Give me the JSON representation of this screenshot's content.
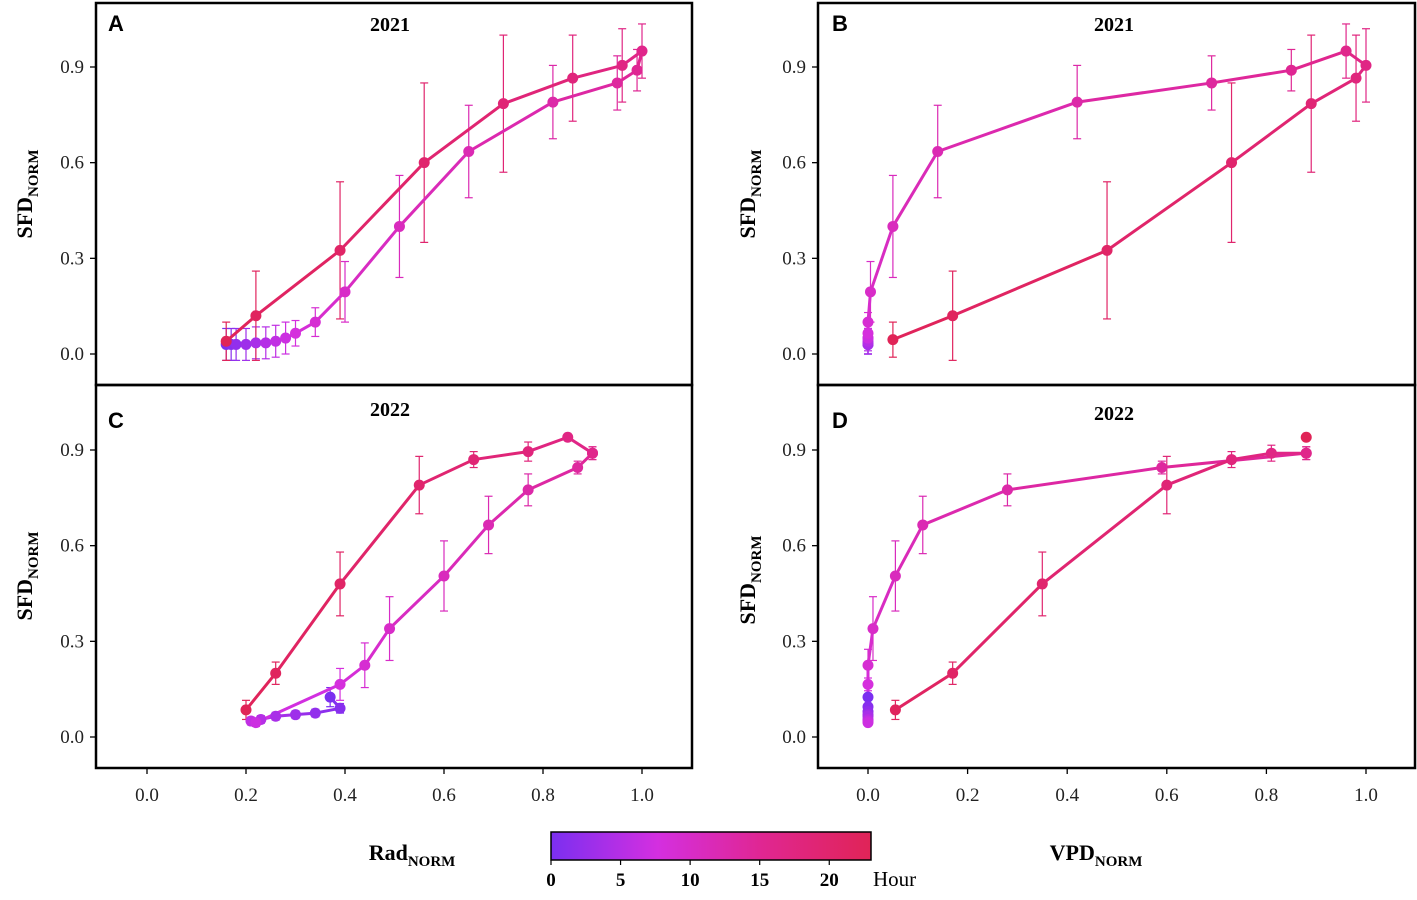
{
  "figure": {
    "xlabel_left": {
      "main": "Rad",
      "sub": "NORM"
    },
    "xlabel_right": {
      "main": "VPD",
      "sub": "NORM"
    },
    "colorbar": {
      "label": "Hour",
      "ticks": [
        "0",
        "5",
        "10",
        "15",
        "20"
      ],
      "tick_values": [
        0,
        5,
        10,
        15,
        20
      ],
      "range": [
        0,
        23
      ],
      "colors": [
        "#7b2ff0",
        "#d42fe0",
        "#e02690",
        "#e02457"
      ]
    }
  },
  "chart_data": [
    {
      "type": "line",
      "panel": "A",
      "title": "2021",
      "xlabel": "Rad_NORM",
      "ylabel": {
        "main": "SFD",
        "sub": "NORM"
      },
      "xlim": [
        -0.1,
        1.1
      ],
      "ylim": [
        -0.05,
        1.05
      ],
      "xticks": [
        "0.0",
        "0.2",
        "0.4",
        "0.6",
        "0.8",
        "1.0"
      ],
      "yticks": [
        "0.0",
        "0.3",
        "0.6",
        "0.9"
      ],
      "show_x_ticklabels": false,
      "points": [
        {
          "x": 0.16,
          "y": 0.03,
          "err": 0.05,
          "h": 0
        },
        {
          "x": 0.17,
          "y": 0.03,
          "err": 0.05,
          "h": 1
        },
        {
          "x": 0.18,
          "y": 0.03,
          "err": 0.05,
          "h": 2
        },
        {
          "x": 0.2,
          "y": 0.03,
          "err": 0.05,
          "h": 3
        },
        {
          "x": 0.22,
          "y": 0.035,
          "err": 0.05,
          "h": 4
        },
        {
          "x": 0.24,
          "y": 0.035,
          "err": 0.05,
          "h": 5
        },
        {
          "x": 0.26,
          "y": 0.04,
          "err": 0.05,
          "h": 6
        },
        {
          "x": 0.28,
          "y": 0.05,
          "err": 0.05,
          "h": 7
        },
        {
          "x": 0.3,
          "y": 0.065,
          "err": 0.04,
          "h": 8
        },
        {
          "x": 0.34,
          "y": 0.1,
          "err": 0.045,
          "h": 9
        },
        {
          "x": 0.4,
          "y": 0.195,
          "err": 0.095,
          "h": 10
        },
        {
          "x": 0.51,
          "y": 0.4,
          "err": 0.16,
          "h": 11
        },
        {
          "x": 0.65,
          "y": 0.635,
          "err": 0.145,
          "h": 12
        },
        {
          "x": 0.82,
          "y": 0.79,
          "err": 0.115,
          "h": 13
        },
        {
          "x": 0.95,
          "y": 0.85,
          "err": 0.085,
          "h": 14
        },
        {
          "x": 0.99,
          "y": 0.89,
          "err": 0.065,
          "h": 15
        },
        {
          "x": 1.0,
          "y": 0.95,
          "err": 0.085,
          "h": 16
        },
        {
          "x": 0.96,
          "y": 0.905,
          "err": 0.115,
          "h": 17
        },
        {
          "x": 0.86,
          "y": 0.865,
          "err": 0.135,
          "h": 18
        },
        {
          "x": 0.72,
          "y": 0.785,
          "err": 0.215,
          "h": 19
        },
        {
          "x": 0.56,
          "y": 0.6,
          "err": 0.25,
          "h": 20
        },
        {
          "x": 0.39,
          "y": 0.325,
          "err": 0.215,
          "h": 21
        },
        {
          "x": 0.22,
          "y": 0.12,
          "err": 0.14,
          "h": 22
        },
        {
          "x": 0.16,
          "y": 0.04,
          "err": 0.06,
          "h": 23
        }
      ]
    },
    {
      "type": "line",
      "panel": "B",
      "title": "2021",
      "xlabel": "VPD_NORM",
      "ylabel": {
        "main": "SFD",
        "sub": "NORM"
      },
      "xlim": [
        -0.1,
        1.1
      ],
      "ylim": [
        -0.05,
        1.05
      ],
      "xticks": [
        "0.0",
        "0.2",
        "0.4",
        "0.6",
        "0.8",
        "1.0"
      ],
      "yticks": [
        "0.0",
        "0.3",
        "0.6",
        "0.9"
      ],
      "show_x_ticklabels": false,
      "points": [
        {
          "x": 0.0,
          "y": 0.03,
          "err": 0.03,
          "h": 0
        },
        {
          "x": 0.0,
          "y": 0.03,
          "err": 0.03,
          "h": 1
        },
        {
          "x": 0.0,
          "y": 0.03,
          "err": 0.03,
          "h": 2
        },
        {
          "x": 0.0,
          "y": 0.03,
          "err": 0.03,
          "h": 3
        },
        {
          "x": 0.0,
          "y": 0.03,
          "err": 0.03,
          "h": 4
        },
        {
          "x": 0.0,
          "y": 0.04,
          "err": 0.03,
          "h": 5
        },
        {
          "x": 0.0,
          "y": 0.05,
          "err": 0.03,
          "h": 6
        },
        {
          "x": 0.0,
          "y": 0.05,
          "err": 0.03,
          "h": 7
        },
        {
          "x": 0.0,
          "y": 0.065,
          "err": 0.03,
          "h": 8
        },
        {
          "x": 0.0,
          "y": 0.1,
          "err": 0.03,
          "h": 9
        },
        {
          "x": 0.005,
          "y": 0.195,
          "err": 0.095,
          "h": 10
        },
        {
          "x": 0.05,
          "y": 0.4,
          "err": 0.16,
          "h": 11
        },
        {
          "x": 0.14,
          "y": 0.635,
          "err": 0.145,
          "h": 12
        },
        {
          "x": 0.42,
          "y": 0.79,
          "err": 0.115,
          "h": 13
        },
        {
          "x": 0.69,
          "y": 0.85,
          "err": 0.085,
          "h": 14
        },
        {
          "x": 0.85,
          "y": 0.89,
          "err": 0.065,
          "h": 15
        },
        {
          "x": 0.96,
          "y": 0.95,
          "err": 0.085,
          "h": 16
        },
        {
          "x": 1.0,
          "y": 0.905,
          "err": 0.115,
          "h": 17
        },
        {
          "x": 0.98,
          "y": 0.865,
          "err": 0.135,
          "h": 18
        },
        {
          "x": 0.89,
          "y": 0.785,
          "err": 0.215,
          "h": 19
        },
        {
          "x": 0.73,
          "y": 0.6,
          "err": 0.25,
          "h": 20
        },
        {
          "x": 0.48,
          "y": 0.325,
          "err": 0.215,
          "h": 21
        },
        {
          "x": 0.17,
          "y": 0.12,
          "err": 0.14,
          "h": 22
        },
        {
          "x": 0.05,
          "y": 0.045,
          "err": 0.055,
          "h": 23
        }
      ]
    },
    {
      "type": "line",
      "panel": "C",
      "title": "2022",
      "xlabel": "Rad_NORM",
      "ylabel": {
        "main": "SFD",
        "sub": "NORM"
      },
      "xlim": [
        -0.1,
        1.1
      ],
      "ylim": [
        -0.05,
        1.05
      ],
      "xticks": [
        "0.0",
        "0.2",
        "0.4",
        "0.6",
        "0.8",
        "1.0"
      ],
      "yticks": [
        "0.0",
        "0.3",
        "0.6",
        "0.9"
      ],
      "show_x_ticklabels": true,
      "points": [
        {
          "x": 0.37,
          "y": 0.125,
          "err": 0.03,
          "h": 0
        },
        {
          "x": 0.39,
          "y": 0.09,
          "err": 0.015,
          "h": 1
        },
        {
          "x": 0.34,
          "y": 0.075,
          "err": 0.012,
          "h": 2
        },
        {
          "x": 0.3,
          "y": 0.07,
          "err": 0.012,
          "h": 3
        },
        {
          "x": 0.26,
          "y": 0.065,
          "err": 0.012,
          "h": 4
        },
        {
          "x": 0.23,
          "y": 0.055,
          "err": 0.012,
          "h": 5
        },
        {
          "x": 0.21,
          "y": 0.05,
          "err": 0.012,
          "h": 6
        },
        {
          "x": 0.22,
          "y": 0.045,
          "err": 0.012,
          "h": 7
        },
        {
          "x": 0.39,
          "y": 0.165,
          "err": 0.05,
          "h": 8
        },
        {
          "x": 0.44,
          "y": 0.225,
          "err": 0.07,
          "h": 9
        },
        {
          "x": 0.49,
          "y": 0.34,
          "err": 0.1,
          "h": 10
        },
        {
          "x": 0.6,
          "y": 0.505,
          "err": 0.11,
          "h": 11
        },
        {
          "x": 0.69,
          "y": 0.665,
          "err": 0.09,
          "h": 12
        },
        {
          "x": 0.77,
          "y": 0.775,
          "err": 0.05,
          "h": 13
        },
        {
          "x": 0.87,
          "y": 0.845,
          "err": 0.02,
          "h": 14
        },
        {
          "x": 0.9,
          "y": 0.89,
          "err": 0.02,
          "h": 15
        },
        {
          "x": 0.9,
          "y": 0.89,
          "err": 0.02,
          "h": 16
        },
        {
          "x": 0.85,
          "y": 0.94,
          "err": 0.01,
          "h": 17
        },
        {
          "x": 0.77,
          "y": 0.895,
          "err": 0.03,
          "h": 18
        },
        {
          "x": 0.66,
          "y": 0.87,
          "err": 0.025,
          "h": 19
        },
        {
          "x": 0.55,
          "y": 0.79,
          "err": 0.09,
          "h": 20
        },
        {
          "x": 0.39,
          "y": 0.48,
          "err": 0.1,
          "h": 21
        },
        {
          "x": 0.26,
          "y": 0.2,
          "err": 0.035,
          "h": 22
        },
        {
          "x": 0.2,
          "y": 0.085,
          "err": 0.03,
          "h": 23
        }
      ]
    },
    {
      "type": "line",
      "panel": "D",
      "title": "2022",
      "xlabel": "VPD_NORM",
      "ylabel": {
        "main": "SFD",
        "sub": "NORM"
      },
      "xlim": [
        -0.1,
        1.1
      ],
      "ylim": [
        -0.05,
        1.05
      ],
      "xticks": [
        "0.0",
        "0.2",
        "0.4",
        "0.6",
        "0.8",
        "1.0"
      ],
      "yticks": [
        "0.0",
        "0.3",
        "0.6",
        "0.9"
      ],
      "show_x_ticklabels": true,
      "points": [
        {
          "x": 0.0,
          "y": 0.125,
          "err": 0.0,
          "h": 0
        },
        {
          "x": 0.0,
          "y": 0.095,
          "err": 0.0,
          "h": 1
        },
        {
          "x": 0.0,
          "y": 0.08,
          "err": 0.0,
          "h": 2
        },
        {
          "x": 0.0,
          "y": 0.07,
          "err": 0.0,
          "h": 3
        },
        {
          "x": 0.0,
          "y": 0.065,
          "err": 0.0,
          "h": 4
        },
        {
          "x": 0.0,
          "y": 0.055,
          "err": 0.0,
          "h": 5
        },
        {
          "x": 0.0,
          "y": 0.05,
          "err": 0.0,
          "h": 6
        },
        {
          "x": 0.0,
          "y": 0.045,
          "err": 0.0,
          "h": 7
        },
        {
          "x": 0.0,
          "y": 0.165,
          "err": 0.02,
          "h": 8
        },
        {
          "x": 0.0,
          "y": 0.225,
          "err": 0.05,
          "h": 9
        },
        {
          "x": 0.01,
          "y": 0.34,
          "err": 0.1,
          "h": 10
        },
        {
          "x": 0.055,
          "y": 0.505,
          "err": 0.11,
          "h": 11
        },
        {
          "x": 0.11,
          "y": 0.665,
          "err": 0.09,
          "h": 12
        },
        {
          "x": 0.28,
          "y": 0.775,
          "err": 0.05,
          "h": 13
        },
        {
          "x": 0.59,
          "y": 0.845,
          "err": 0.02,
          "h": 14
        },
        {
          "x": 0.88,
          "y": 0.89,
          "err": 0.02,
          "h": 15
        },
        {
          "x": 0.88,
          "y": 0.89,
          "err": 0.02,
          "h": 16
        },
        {
          "x": 0.81,
          "y": 0.89,
          "err": 0.025,
          "h": 17
        },
        {
          "x": 0.73,
          "y": 0.87,
          "err": 0.025,
          "h": 18
        },
        {
          "x": 0.6,
          "y": 0.79,
          "err": 0.09,
          "h": 19
        },
        {
          "x": 0.35,
          "y": 0.48,
          "err": 0.1,
          "h": 20
        },
        {
          "x": 0.17,
          "y": 0.2,
          "err": 0.035,
          "h": 21
        },
        {
          "x": 0.055,
          "y": 0.085,
          "err": 0.03,
          "h": 22
        },
        {
          "x": 0.88,
          "y": 0.94,
          "err": 0.0,
          "h": 23
        }
      ]
    }
  ]
}
